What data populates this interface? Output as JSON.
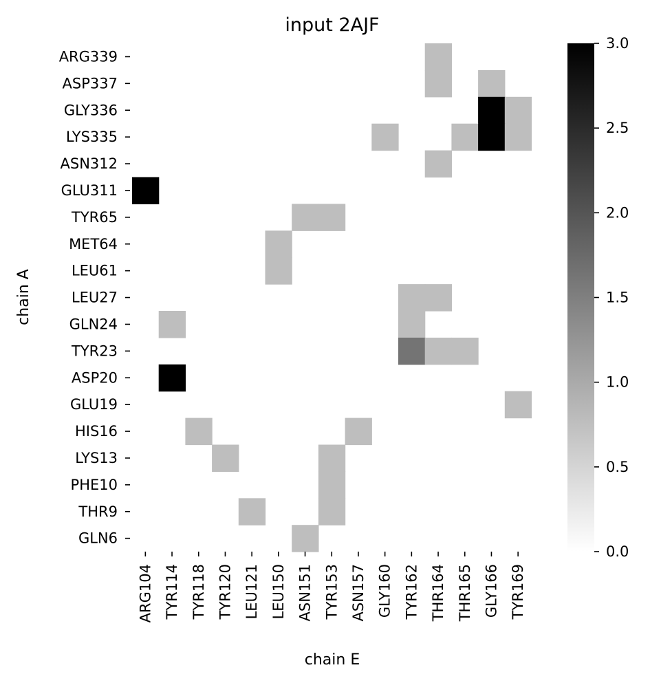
{
  "chart_data": {
    "type": "heatmap",
    "title": "input 2AJF",
    "xlabel": "chain E",
    "ylabel": "chain A",
    "x_categories": [
      "ARG104",
      "TYR114",
      "TYR118",
      "TYR120",
      "LEU121",
      "LEU150",
      "ASN151",
      "TYR153",
      "ASN157",
      "GLY160",
      "TYR162",
      "THR164",
      "THR165",
      "GLY166",
      "TYR169"
    ],
    "y_categories": [
      "ARG339",
      "ASP337",
      "GLY336",
      "LYS335",
      "ASN312",
      "GLU311",
      "TYR65",
      "MET64",
      "LEU61",
      "LEU27",
      "GLN24",
      "TYR23",
      "ASP20",
      "GLU19",
      "HIS16",
      "LYS13",
      "PHE10",
      "THR9",
      "GLN6"
    ],
    "values": [
      [
        0,
        0,
        0,
        0,
        0,
        0,
        0,
        0,
        0,
        0,
        0,
        1,
        0,
        0,
        0
      ],
      [
        0,
        0,
        0,
        0,
        0,
        0,
        0,
        0,
        0,
        0,
        0,
        1,
        0,
        1,
        0
      ],
      [
        0,
        0,
        0,
        0,
        0,
        0,
        0,
        0,
        0,
        0,
        0,
        0,
        0,
        3,
        1
      ],
      [
        0,
        0,
        0,
        0,
        0,
        0,
        0,
        0,
        0,
        1,
        0,
        0,
        1,
        3,
        1
      ],
      [
        0,
        0,
        0,
        0,
        0,
        0,
        0,
        0,
        0,
        0,
        0,
        1,
        0,
        0,
        0
      ],
      [
        3,
        0,
        0,
        0,
        0,
        0,
        0,
        0,
        0,
        0,
        0,
        0,
        0,
        0,
        0
      ],
      [
        0,
        0,
        0,
        0,
        0,
        0,
        1,
        1,
        0,
        0,
        0,
        0,
        0,
        0,
        0
      ],
      [
        0,
        0,
        0,
        0,
        0,
        1,
        0,
        0,
        0,
        0,
        0,
        0,
        0,
        0,
        0
      ],
      [
        0,
        0,
        0,
        0,
        0,
        1,
        0,
        0,
        0,
        0,
        0,
        0,
        0,
        0,
        0
      ],
      [
        0,
        0,
        0,
        0,
        0,
        0,
        0,
        0,
        0,
        0,
        1,
        1,
        0,
        0,
        0
      ],
      [
        0,
        1,
        0,
        0,
        0,
        0,
        0,
        0,
        0,
        0,
        1,
        0,
        0,
        0,
        0
      ],
      [
        0,
        0,
        0,
        0,
        0,
        0,
        0,
        0,
        0,
        0,
        2,
        1,
        1,
        0,
        0
      ],
      [
        0,
        3,
        0,
        0,
        0,
        0,
        0,
        0,
        0,
        0,
        0,
        0,
        0,
        0,
        0
      ],
      [
        0,
        0,
        0,
        0,
        0,
        0,
        0,
        0,
        0,
        0,
        0,
        0,
        0,
        0,
        1
      ],
      [
        0,
        0,
        1,
        0,
        0,
        0,
        0,
        0,
        1,
        0,
        0,
        0,
        0,
        0,
        0
      ],
      [
        0,
        0,
        0,
        1,
        0,
        0,
        0,
        1,
        0,
        0,
        0,
        0,
        0,
        0,
        0
      ],
      [
        0,
        0,
        0,
        0,
        0,
        0,
        0,
        1,
        0,
        0,
        0,
        0,
        0,
        0,
        0
      ],
      [
        0,
        0,
        0,
        0,
        1,
        0,
        0,
        1,
        0,
        0,
        0,
        0,
        0,
        0,
        0
      ],
      [
        0,
        0,
        0,
        0,
        0,
        0,
        1,
        0,
        0,
        0,
        0,
        0,
        0,
        0,
        0
      ]
    ],
    "vmin": 0,
    "vmax": 3,
    "colormap": "Greys",
    "colorbar_ticks": [
      "0.0",
      "0.5",
      "1.0",
      "1.5",
      "2.0",
      "2.5",
      "3.0"
    ],
    "grid": false,
    "legend": "colorbar right"
  }
}
